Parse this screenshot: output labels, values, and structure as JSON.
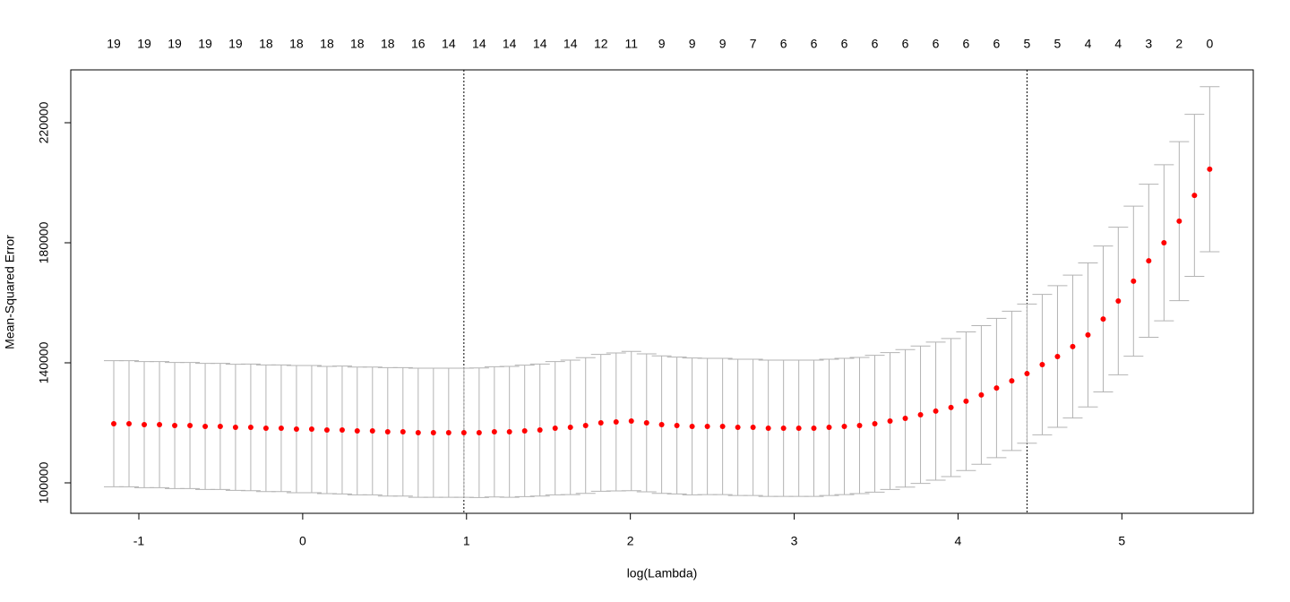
{
  "chart_data": {
    "type": "errorbar",
    "xlabel": "log(Lambda)",
    "ylabel": "Mean-Squared Error",
    "color": "#ff0000",
    "error_color": "#b3b3b3",
    "x": [
      -1.153,
      -1.06,
      -0.967,
      -0.874,
      -0.781,
      -0.688,
      -0.595,
      -0.503,
      -0.41,
      -0.317,
      -0.224,
      -0.131,
      -0.038,
      0.055,
      0.148,
      0.241,
      0.333,
      0.426,
      0.519,
      0.612,
      0.705,
      0.798,
      0.891,
      0.984,
      1.077,
      1.17,
      1.262,
      1.355,
      1.448,
      1.541,
      1.634,
      1.727,
      1.82,
      1.913,
      2.006,
      2.099,
      2.191,
      2.284,
      2.377,
      2.47,
      2.563,
      2.656,
      2.749,
      2.842,
      2.935,
      3.028,
      3.12,
      3.213,
      3.306,
      3.399,
      3.492,
      3.585,
      3.678,
      3.771,
      3.864,
      3.957,
      4.049,
      4.142,
      4.235,
      4.328,
      4.421,
      4.514,
      4.607,
      4.7,
      4.793,
      4.886,
      4.978,
      5.071,
      5.164,
      5.257,
      5.35,
      5.443,
      5.536
    ],
    "values": [
      119700,
      119700,
      119400,
      119400,
      119100,
      119100,
      118800,
      118800,
      118500,
      118500,
      118200,
      118200,
      117900,
      117900,
      117600,
      117600,
      117300,
      117300,
      117000,
      117000,
      116700,
      116700,
      116700,
      116700,
      116700,
      117000,
      117000,
      117300,
      117600,
      118200,
      118500,
      119100,
      120000,
      120300,
      120600,
      120000,
      119400,
      119100,
      118800,
      118800,
      118800,
      118500,
      118500,
      118200,
      118200,
      118200,
      118200,
      118500,
      118800,
      119100,
      119700,
      120600,
      121500,
      122700,
      123900,
      125100,
      127200,
      129300,
      131600,
      134000,
      136400,
      139400,
      142100,
      145400,
      149300,
      154600,
      160600,
      167200,
      174000,
      180000,
      187200,
      195800,
      204500
    ],
    "errors": [
      21000,
      21000,
      21000,
      21000,
      21000,
      21000,
      21000,
      21000,
      21000,
      21100,
      21100,
      21100,
      21200,
      21200,
      21200,
      21300,
      21300,
      21300,
      21400,
      21400,
      21500,
      21500,
      21500,
      21500,
      21600,
      21700,
      21800,
      21900,
      22000,
      22200,
      22400,
      22600,
      22800,
      23000,
      23200,
      23000,
      22900,
      22800,
      22800,
      22700,
      22700,
      22700,
      22700,
      22700,
      22700,
      22700,
      22700,
      22700,
      22700,
      22700,
      22800,
      22800,
      22900,
      22900,
      23000,
      23000,
      23100,
      23100,
      23200,
      23200,
      23200,
      23400,
      23600,
      23800,
      24000,
      24300,
      24600,
      25000,
      25500,
      26000,
      26500,
      27000,
      27500
    ],
    "vlines": [
      0.984,
      4.421
    ],
    "xlim": [
      -1.4155,
      5.802
    ],
    "ylim": [
      89851,
      237612
    ],
    "xticks": [
      -1,
      0,
      1,
      2,
      3,
      4,
      5
    ],
    "yticks": [
      100000,
      140000,
      180000,
      220000
    ],
    "top_ticks": [
      {
        "value": -1.153,
        "label": "19"
      },
      {
        "value": -0.967,
        "label": "19"
      },
      {
        "value": -0.781,
        "label": "19"
      },
      {
        "value": -0.595,
        "label": "19"
      },
      {
        "value": -0.41,
        "label": "19"
      },
      {
        "value": -0.224,
        "label": "18"
      },
      {
        "value": -0.038,
        "label": "18"
      },
      {
        "value": 0.148,
        "label": "18"
      },
      {
        "value": 0.333,
        "label": "18"
      },
      {
        "value": 0.519,
        "label": "18"
      },
      {
        "value": 0.705,
        "label": "16"
      },
      {
        "value": 0.891,
        "label": "14"
      },
      {
        "value": 1.077,
        "label": "14"
      },
      {
        "value": 1.262,
        "label": "14"
      },
      {
        "value": 1.448,
        "label": "14"
      },
      {
        "value": 1.634,
        "label": "14"
      },
      {
        "value": 1.82,
        "label": "12"
      },
      {
        "value": 2.006,
        "label": "11"
      },
      {
        "value": 2.191,
        "label": "9"
      },
      {
        "value": 2.377,
        "label": "9"
      },
      {
        "value": 2.563,
        "label": "9"
      },
      {
        "value": 2.749,
        "label": "7"
      },
      {
        "value": 2.935,
        "label": "6"
      },
      {
        "value": 3.12,
        "label": "6"
      },
      {
        "value": 3.306,
        "label": "6"
      },
      {
        "value": 3.492,
        "label": "6"
      },
      {
        "value": 3.678,
        "label": "6"
      },
      {
        "value": 3.864,
        "label": "6"
      },
      {
        "value": 4.049,
        "label": "6"
      },
      {
        "value": 4.235,
        "label": "6"
      },
      {
        "value": 4.421,
        "label": "5"
      },
      {
        "value": 4.607,
        "label": "5"
      },
      {
        "value": 4.793,
        "label": "4"
      },
      {
        "value": 4.978,
        "label": "4"
      },
      {
        "value": 5.164,
        "label": "3"
      },
      {
        "value": 5.35,
        "label": "2"
      },
      {
        "value": 5.536,
        "label": "0"
      }
    ]
  }
}
